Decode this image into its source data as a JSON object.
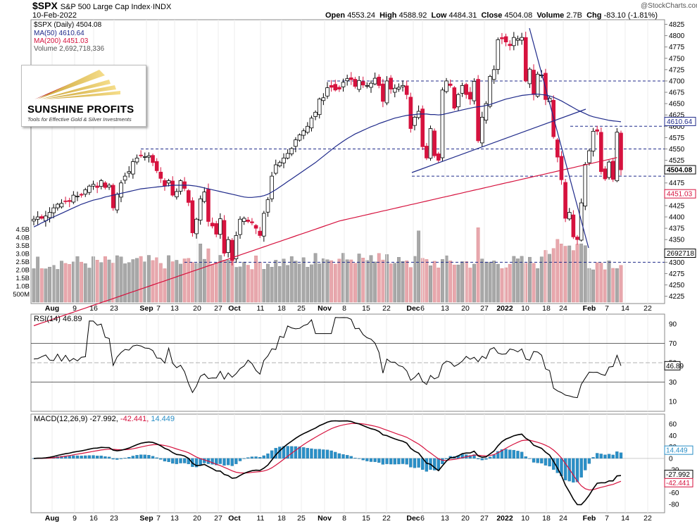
{
  "header": {
    "symbol": "$SPX",
    "index_name": "S&P 500 Large Cap Index",
    "exchange": "INDX",
    "date": "10-Feb-2022",
    "watermark": "@StockCharts.com",
    "ohlc": {
      "open_label": "Open",
      "open": "4553.24",
      "high_label": "High",
      "high": "4588.92",
      "low_label": "Low",
      "low": "4484.31",
      "close_label": "Close",
      "close": "4504.08",
      "volume_label": "Volume",
      "volume": "2.7B",
      "chg_label": "Chg",
      "chg": "-83.10 (-1.81%)"
    }
  },
  "legend": {
    "price": "$SPX (Daily) 4504.08",
    "ma50": "MA(50) 4610.64",
    "ma200": "MA(200) 4451.03",
    "volume": "Volume 2,692,718,336"
  },
  "logo": {
    "name": "SUNSHINE PROFITS",
    "tagline": "Tools for Effective Gold & Silver Investments"
  },
  "rsi_label": "RSI(14) 46.89",
  "macd_label": {
    "prefix": "MACD(12,26,9)",
    "macd": "-27.992,",
    "signal": "-42.441,",
    "hist": "14.449"
  },
  "colors": {
    "up": "#000000",
    "down": "#d6123e",
    "ma50": "#1f2a8a",
    "ma200": "#d6123e",
    "volume_up": "#a8a8a8",
    "volume_down": "#e7a7ad",
    "hist": "#2a8fc7",
    "rsi_fill_over": "#5f8f5f",
    "rsi_fill_under": "#8a5b6a",
    "guides": "#1f2a8a"
  },
  "chart_data": {
    "type": "line",
    "price_panel": {
      "y_ticks": [
        4225,
        4250,
        4275,
        4300,
        4325,
        4350,
        4375,
        4400,
        4425,
        4450,
        4475,
        4500,
        4525,
        4550,
        4575,
        4600,
        4625,
        4650,
        4675,
        4700,
        4725,
        4750,
        4775,
        4800,
        4825
      ],
      "ylim": [
        4212,
        4832
      ],
      "last_price_label": "4504.08",
      "ma50_label": "4610.64",
      "ma200_label": "4451.03",
      "volume_label": "2692718",
      "volume_ticks": [
        "500M",
        "1.0B",
        "1.5B",
        "2.0B",
        "2.5B",
        "3.0B",
        "3.5B",
        "4.0B",
        "4.5B"
      ],
      "volume_tick_values": [
        0.5,
        1.0,
        1.5,
        2.0,
        2.5,
        3.0,
        3.5,
        4.0,
        4.5
      ],
      "horizontal_levels": [
        4700,
        4600,
        4550,
        4490,
        4300
      ],
      "close": [
        4395,
        4400,
        4397,
        4402,
        4410,
        4420,
        4428,
        4430,
        4435,
        4434,
        4448,
        4446,
        4448,
        4460,
        4468,
        4472,
        4465,
        4480,
        4465,
        4470,
        4420,
        4450,
        4475,
        4490,
        4500,
        4522,
        4530,
        4536,
        4533,
        4535,
        4520,
        4502,
        4485,
        4468,
        4480,
        4448,
        4456,
        4480,
        4463,
        4432,
        4365,
        4395,
        4440,
        4455,
        4390,
        4380,
        4362,
        4396,
        4320,
        4350,
        4304,
        4359,
        4395,
        4397,
        4390,
        4387,
        4375,
        4359,
        4408,
        4438,
        4490,
        4515,
        4520,
        4530,
        4540,
        4551,
        4570,
        4581,
        4590,
        4600,
        4618,
        4631,
        4660,
        4663,
        4685,
        4686,
        4680,
        4682,
        4697,
        4705,
        4703,
        4688,
        4701,
        4691,
        4690,
        4695,
        4706,
        4690,
        4655,
        4700,
        4682,
        4684,
        4686,
        4690,
        4670,
        4595,
        4620,
        4633,
        4555,
        4530,
        4595,
        4535,
        4525,
        4680,
        4700,
        4690,
        4640,
        4670,
        4690,
        4670,
        4660,
        4699,
        4568,
        4620,
        4650,
        4710,
        4725,
        4791,
        4793,
        4786,
        4778,
        4796,
        4793,
        4796,
        4700,
        4726,
        4670,
        4715,
        4713,
        4659,
        4662,
        4577,
        4532,
        4482,
        4397,
        4410,
        4356,
        4350,
        4431,
        4516,
        4546,
        4589,
        4589,
        4500,
        4484,
        4521,
        4483,
        4587,
        4504
      ],
      "ma50": [
        4378,
        4382,
        4387,
        4391,
        4396,
        4400,
        4404,
        4408,
        4412,
        4416,
        4420,
        4424,
        4428,
        4431,
        4434,
        4437,
        4439,
        4441,
        4444,
        4446,
        4448,
        4450,
        4452,
        4454,
        4456,
        4458,
        4460,
        4462,
        4463,
        4464,
        4465,
        4466,
        4467,
        4468,
        4469,
        4470,
        4470,
        4470,
        4470,
        4470,
        4469,
        4468,
        4466,
        4464,
        4462,
        4460,
        4458,
        4456,
        4454,
        4452,
        4450,
        4448,
        4446,
        4444,
        4443,
        4443,
        4444,
        4445,
        4447,
        4450,
        4455,
        4460,
        4466,
        4472,
        4478,
        4484,
        4490,
        4496,
        4502,
        4508,
        4514,
        4520,
        4527,
        4534,
        4541,
        4548,
        4555,
        4561,
        4567,
        4573,
        4578,
        4583,
        4587,
        4591,
        4595,
        4599,
        4602,
        4606,
        4609,
        4612,
        4615,
        4618,
        4620,
        4622,
        4624,
        4625,
        4626,
        4627,
        4627,
        4627,
        4626,
        4626,
        4625,
        4626,
        4628,
        4630,
        4632,
        4634,
        4636,
        4638,
        4640,
        4642,
        4643,
        4644,
        4646,
        4648,
        4651,
        4654,
        4657,
        4660,
        4662,
        4664,
        4666,
        4668,
        4669,
        4670,
        4671,
        4671,
        4670,
        4669,
        4667,
        4664,
        4660,
        4656,
        4651,
        4646,
        4641,
        4636,
        4632,
        4628,
        4624,
        4621,
        4619,
        4617,
        4615,
        4613,
        4612,
        4611,
        4610,
        4610
      ],
      "ma200": [
        4160,
        4163,
        4166,
        4169,
        4172,
        4175,
        4178,
        4181,
        4184,
        4187,
        4190,
        4193,
        4196,
        4199,
        4202,
        4205,
        4208,
        4211,
        4214,
        4217,
        4220,
        4223,
        4226,
        4229,
        4232,
        4235,
        4238,
        4241,
        4244,
        4247,
        4250,
        4253,
        4256,
        4259,
        4262,
        4265,
        4268,
        4271,
        4274,
        4277,
        4280,
        4283,
        4286,
        4289,
        4292,
        4295,
        4298,
        4301,
        4304,
        4307,
        4310,
        4313,
        4316,
        4319,
        4322,
        4325,
        4328,
        4331,
        4334,
        4337,
        4340,
        4343,
        4346,
        4349,
        4352,
        4355,
        4358,
        4361,
        4364,
        4367,
        4370,
        4373,
        4376,
        4379,
        4382,
        4385,
        4388,
        4391,
        4393,
        4395,
        4397,
        4399,
        4401,
        4403,
        4405,
        4407,
        4409,
        4411,
        4413,
        4415,
        4417,
        4419,
        4421,
        4423,
        4425,
        4427,
        4429,
        4431,
        4433,
        4435,
        4437,
        4439,
        4441,
        4443,
        4445,
        4447,
        4449,
        4451,
        4453,
        4455,
        4457,
        4459,
        4461,
        4463,
        4465,
        4467,
        4469,
        4471,
        4473,
        4475,
        4477,
        4479,
        4481,
        4483,
        4485,
        4487,
        4489,
        4491,
        4493,
        4495,
        4497,
        4499,
        4501,
        4503,
        4505,
        4507,
        4509,
        4511,
        4513,
        4515,
        4517,
        4519,
        4521,
        4523,
        4525,
        4527,
        4529,
        4531,
        4533,
        4451
      ]
    },
    "x_tick_labels": [
      "Aug",
      "9",
      "16",
      "23",
      "Sep",
      "7",
      "13",
      "20",
      "27",
      "Oct",
      "11",
      "18",
      "25",
      "Nov",
      "8",
      "15",
      "22",
      "Dec",
      "6",
      "13",
      "20",
      "27",
      "2022",
      "10",
      "18",
      "24",
      "Feb",
      "7",
      "14",
      "22"
    ],
    "rsi_panel": {
      "y_ticks": [
        10,
        30,
        50,
        70,
        90
      ],
      "ylim": [
        0,
        100
      ],
      "last": 46.89
    },
    "macd_panel": {
      "y_ticks": [
        60,
        40,
        20,
        0,
        -20,
        -40,
        -60,
        -80
      ],
      "ylim": [
        -95,
        75
      ],
      "last_macd": -27.992,
      "last_signal": -42.441,
      "last_hist": 14.449,
      "macd_value_label": "-27.992",
      "signal_value_label": "-42.441",
      "hist_value_label": "14.449"
    }
  }
}
